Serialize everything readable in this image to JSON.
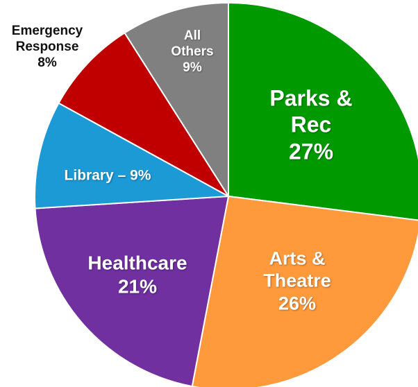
{
  "chart_data": {
    "type": "pie",
    "categories": [
      "Parks & Rec",
      "Arts & Theatre",
      "Healthcare",
      "Library –",
      "Emergency Response",
      "All Others"
    ],
    "values": [
      27,
      26,
      21,
      9,
      8,
      9
    ],
    "value_labels": [
      "27%",
      "26%",
      "21%",
      "9%",
      "8%",
      "9%"
    ],
    "colors": [
      "#009a00",
      "#ff9a3c",
      "#7030a0",
      "#1c9ad6",
      "#c00000",
      "#808080"
    ]
  }
}
